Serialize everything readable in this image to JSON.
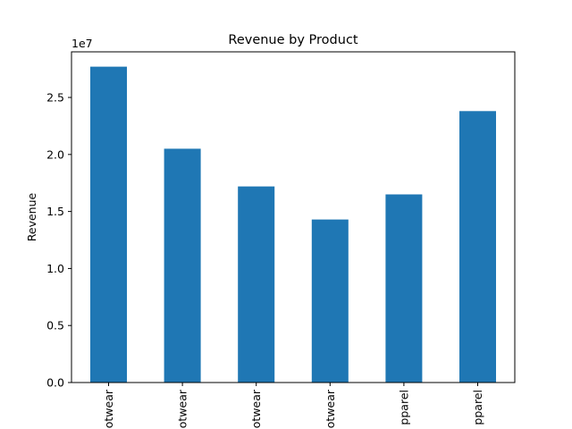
{
  "chart_data": {
    "type": "bar",
    "title": "Revenue by Product",
    "ylabel": "Revenue",
    "xlabel": "",
    "y_offset_label": "1e7",
    "categories": [
      "otwear",
      "otwear",
      "otwear",
      "otwear",
      "pparel",
      "pparel"
    ],
    "values": [
      27700000,
      20500000,
      17200000,
      14300000,
      16500000,
      23800000
    ],
    "ylim": [
      0,
      29000000
    ],
    "yticks": [
      0,
      5000000,
      10000000,
      15000000,
      20000000,
      25000000
    ],
    "ytick_labels": [
      "0.0",
      "0.5",
      "1.0",
      "1.5",
      "2.0",
      "2.5"
    ],
    "grid": false,
    "legend": "none",
    "bar_color": "#1f77b4"
  }
}
